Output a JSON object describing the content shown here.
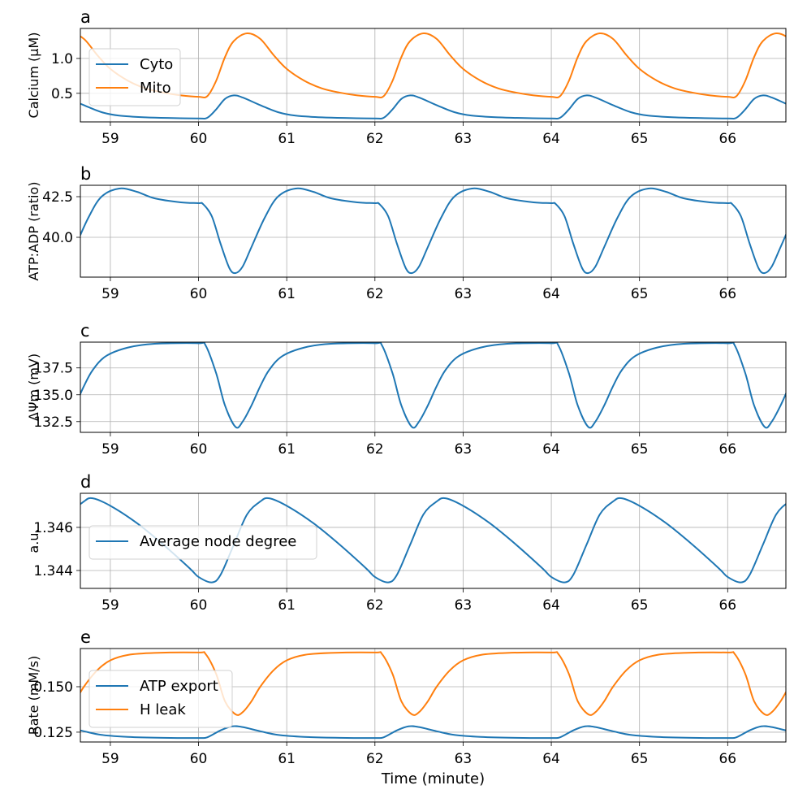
{
  "chart_data": [
    {
      "type": "line",
      "panel_label": "a",
      "ylabel": "Calcium (µM)",
      "xlim": [
        58.66,
        66.66
      ],
      "ylim": [
        0.09,
        1.43
      ],
      "xticks": [
        59,
        60,
        61,
        62,
        63,
        64,
        65,
        66
      ],
      "yticks": [
        0.5,
        1.0
      ],
      "ytick_labels": [
        "0.5",
        "1.0"
      ],
      "grid": true,
      "legend": "upper-left",
      "period_minutes": 2,
      "series": [
        {
          "name": "Cyto",
          "color": "#1f77b4",
          "cycle_x": [
            60,
            60.1,
            60.2,
            60.3,
            60.4,
            60.5,
            60.7,
            60.9,
            61.1,
            61.4,
            61.7,
            62
          ],
          "cycle_y": [
            0.14,
            0.15,
            0.27,
            0.42,
            0.47,
            0.44,
            0.33,
            0.23,
            0.18,
            0.155,
            0.145,
            0.14
          ]
        },
        {
          "name": "Mito",
          "color": "#ff7f0e",
          "cycle_x": [
            60,
            60.1,
            60.2,
            60.3,
            60.4,
            60.55,
            60.7,
            60.85,
            61,
            61.2,
            61.4,
            61.6,
            61.8,
            62
          ],
          "cycle_y": [
            0.45,
            0.46,
            0.68,
            1.02,
            1.25,
            1.36,
            1.28,
            1.05,
            0.85,
            0.68,
            0.57,
            0.51,
            0.47,
            0.45
          ]
        }
      ]
    },
    {
      "type": "line",
      "panel_label": "b",
      "ylabel": "ATP:ADP (ratio)",
      "xlim": [
        58.66,
        66.66
      ],
      "ylim": [
        37.55,
        43.2
      ],
      "xticks": [
        59,
        60,
        61,
        62,
        63,
        64,
        65,
        66
      ],
      "yticks": [
        40.0,
        42.5
      ],
      "ytick_labels": [
        "40.0",
        "42.5"
      ],
      "grid": true,
      "period_minutes": 2,
      "series": [
        {
          "color": "#1f77b4",
          "cycle_x": [
            60,
            60.05,
            60.15,
            60.25,
            60.35,
            60.42,
            60.5,
            60.6,
            60.75,
            60.9,
            61.1,
            61.3,
            61.5,
            61.8,
            62
          ],
          "cycle_y": [
            42.1,
            42.05,
            41.3,
            39.6,
            38.1,
            37.8,
            38.2,
            39.4,
            41.2,
            42.5,
            43.0,
            42.8,
            42.4,
            42.15,
            42.1
          ]
        }
      ]
    },
    {
      "type": "line",
      "panel_label": "c",
      "ylabel": "ΔΨm (mV)",
      "xlim": [
        58.66,
        66.66
      ],
      "ylim": [
        131.5,
        139.9
      ],
      "xticks": [
        59,
        60,
        61,
        62,
        63,
        64,
        65,
        66
      ],
      "yticks": [
        132.5,
        135.0,
        137.5
      ],
      "ytick_labels": [
        "132.5",
        "135.0",
        "137.5"
      ],
      "grid": true,
      "period_minutes": 2,
      "series": [
        {
          "color": "#1f77b4",
          "cycle_x": [
            60,
            60.08,
            60.2,
            60.3,
            60.42,
            60.5,
            60.6,
            60.7,
            60.8,
            60.95,
            61.2,
            61.5,
            62
          ],
          "cycle_y": [
            139.8,
            139.6,
            137.0,
            134.0,
            132.0,
            132.5,
            134.0,
            135.8,
            137.3,
            138.6,
            139.4,
            139.75,
            139.8
          ]
        }
      ]
    },
    {
      "type": "line",
      "panel_label": "d",
      "ylabel": "a.u.",
      "xlim": [
        58.66,
        66.66
      ],
      "ylim": [
        1.34317,
        1.34758
      ],
      "xticks": [
        59,
        60,
        61,
        62,
        63,
        64,
        65,
        66
      ],
      "yticks": [
        1.344,
        1.346
      ],
      "ytick_labels": [
        "1.344",
        "1.346"
      ],
      "grid": true,
      "legend": "center-left",
      "period_minutes": 2,
      "series": [
        {
          "name": "Average node degree",
          "color": "#1f77b4",
          "cycle_x": [
            60,
            60.15,
            60.25,
            60.4,
            60.55,
            60.7,
            60.8,
            61.0,
            61.3,
            61.6,
            61.9,
            62
          ],
          "cycle_y": [
            1.3437,
            1.34345,
            1.3438,
            1.3452,
            1.3466,
            1.3472,
            1.34735,
            1.347,
            1.3462,
            1.3452,
            1.3441,
            1.3437
          ]
        }
      ]
    },
    {
      "type": "line",
      "panel_label": "e",
      "ylabel": "Rate (mM/s)",
      "xlabel": "Time (minute)",
      "xlim": [
        58.66,
        66.66
      ],
      "ylim": [
        0.1196,
        0.171
      ],
      "xticks": [
        59,
        60,
        61,
        62,
        63,
        64,
        65,
        66
      ],
      "yticks": [
        0.125,
        0.15
      ],
      "ytick_labels": [
        "0.125",
        "0.150"
      ],
      "grid": true,
      "legend": "center-left",
      "period_minutes": 2,
      "series": [
        {
          "name": "ATP export",
          "color": "#1f77b4",
          "cycle_x": [
            60,
            60.1,
            60.25,
            60.38,
            60.5,
            60.7,
            60.9,
            61.2,
            61.6,
            62
          ],
          "cycle_y": [
            0.1218,
            0.1222,
            0.126,
            0.1282,
            0.1278,
            0.1255,
            0.1235,
            0.1224,
            0.1219,
            0.1218
          ]
        },
        {
          "name": "H leak",
          "color": "#ff7f0e",
          "cycle_x": [
            60,
            60.08,
            60.2,
            60.3,
            60.42,
            60.5,
            60.6,
            60.7,
            60.85,
            61,
            61.2,
            61.5,
            62
          ],
          "cycle_y": [
            0.1688,
            0.168,
            0.157,
            0.142,
            0.1348,
            0.136,
            0.142,
            0.15,
            0.159,
            0.1645,
            0.1675,
            0.1686,
            0.1688
          ]
        }
      ]
    }
  ]
}
